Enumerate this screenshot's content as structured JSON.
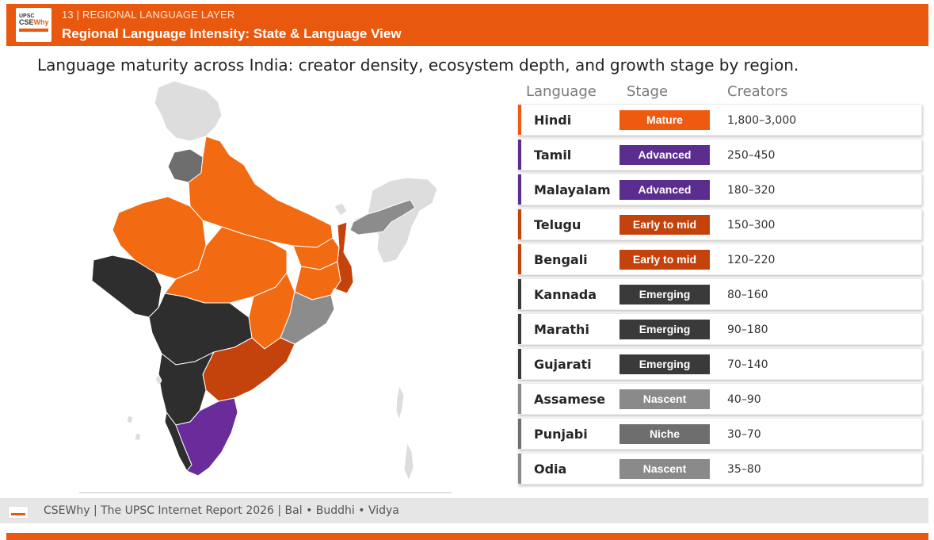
{
  "header": {
    "section": "13 | REGIONAL LANGUAGE LAYER",
    "title": "Regional Language Intensity: State & Language View",
    "logo_line1": "UPSC",
    "logo_line2a": "CSE",
    "logo_line2b": "Why"
  },
  "subtitle": "Language maturity across India: creator density, ecosystem depth, and growth stage by region.",
  "table": {
    "headers": {
      "language": "Language",
      "stage": "Stage",
      "creators": "Creators"
    },
    "rows": [
      {
        "language": "Hindi",
        "stage": "Mature",
        "creators": "1,800–3,000",
        "color": "#ee5a10"
      },
      {
        "language": "Tamil",
        "stage": "Advanced",
        "creators": "250–450",
        "color": "#5b2d8e"
      },
      {
        "language": "Malayalam",
        "stage": "Advanced",
        "creators": "180–320",
        "color": "#5b2d8e"
      },
      {
        "language": "Telugu",
        "stage": "Early to mid",
        "creators": "150–300",
        "color": "#c4420c"
      },
      {
        "language": "Bengali",
        "stage": "Early to mid",
        "creators": "120–220",
        "color": "#c4420c"
      },
      {
        "language": "Kannada",
        "stage": "Emerging",
        "creators": "80–160",
        "color": "#3a3a3a"
      },
      {
        "language": "Marathi",
        "stage": "Emerging",
        "creators": "90–180",
        "color": "#3a3a3a"
      },
      {
        "language": "Gujarati",
        "stage": "Emerging",
        "creators": "70–140",
        "color": "#3a3a3a"
      },
      {
        "language": "Assamese",
        "stage": "Nascent",
        "creators": "40–90",
        "color": "#8a8a8a"
      },
      {
        "language": "Punjabi",
        "stage": "Niche",
        "creators": "30–70",
        "color": "#6e6e6e"
      },
      {
        "language": "Odia",
        "stage": "Nascent",
        "creators": "35–80",
        "color": "#8a8a8a"
      }
    ]
  },
  "map_colors": {
    "hindi": "#f26a12",
    "tamil": "#6a2c9a",
    "telugu": "#c4420c",
    "bengali": "#c4420c",
    "dravidian_west": "#2e2e2e",
    "odia": "#8c8c8c",
    "assamese": "#8c8c8c",
    "punjabi": "#6e6e6e",
    "other": "#dddddd"
  },
  "footer": {
    "text": "CSEWhy  |  The UPSC Internet Report 2026  |  Bal • Buddhi • Vidya"
  }
}
